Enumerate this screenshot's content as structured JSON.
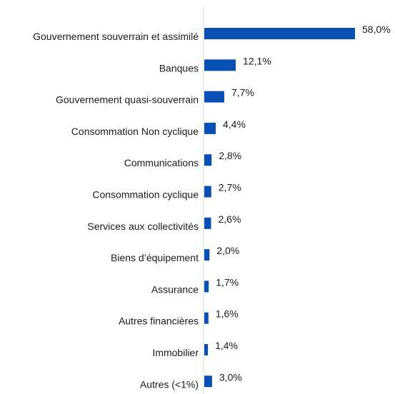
{
  "chart_data": {
    "type": "bar",
    "orientation": "horizontal",
    "categories": [
      "Gouvernement souverrain et assimilé",
      "Banques",
      "Gouvernement quasi-souverrain",
      "Consommation Non cyclique",
      "Communications",
      "Consommation cyclique",
      "Services aux collectivités",
      "Biens d’équipement",
      "Assurance",
      "Autres financières",
      "Immobilier",
      "Autres (<1%)"
    ],
    "values": [
      58.0,
      12.1,
      7.7,
      4.4,
      2.8,
      2.7,
      2.6,
      2.0,
      1.7,
      1.6,
      1.4,
      3.0
    ],
    "value_labels": [
      "58,0%",
      "12,1%",
      "7,7%",
      "4,4%",
      "2,8%",
      "2,7%",
      "2,6%",
      "2,0%",
      "1,7%",
      "1,6%",
      "1,4%",
      "3,0%"
    ],
    "bar_color": "#0a4fb4",
    "axis_color": "#d9d9d9",
    "xlim": [
      0,
      58.0
    ],
    "grid": false,
    "legend": "none",
    "title": "",
    "xlabel": "",
    "ylabel": ""
  }
}
